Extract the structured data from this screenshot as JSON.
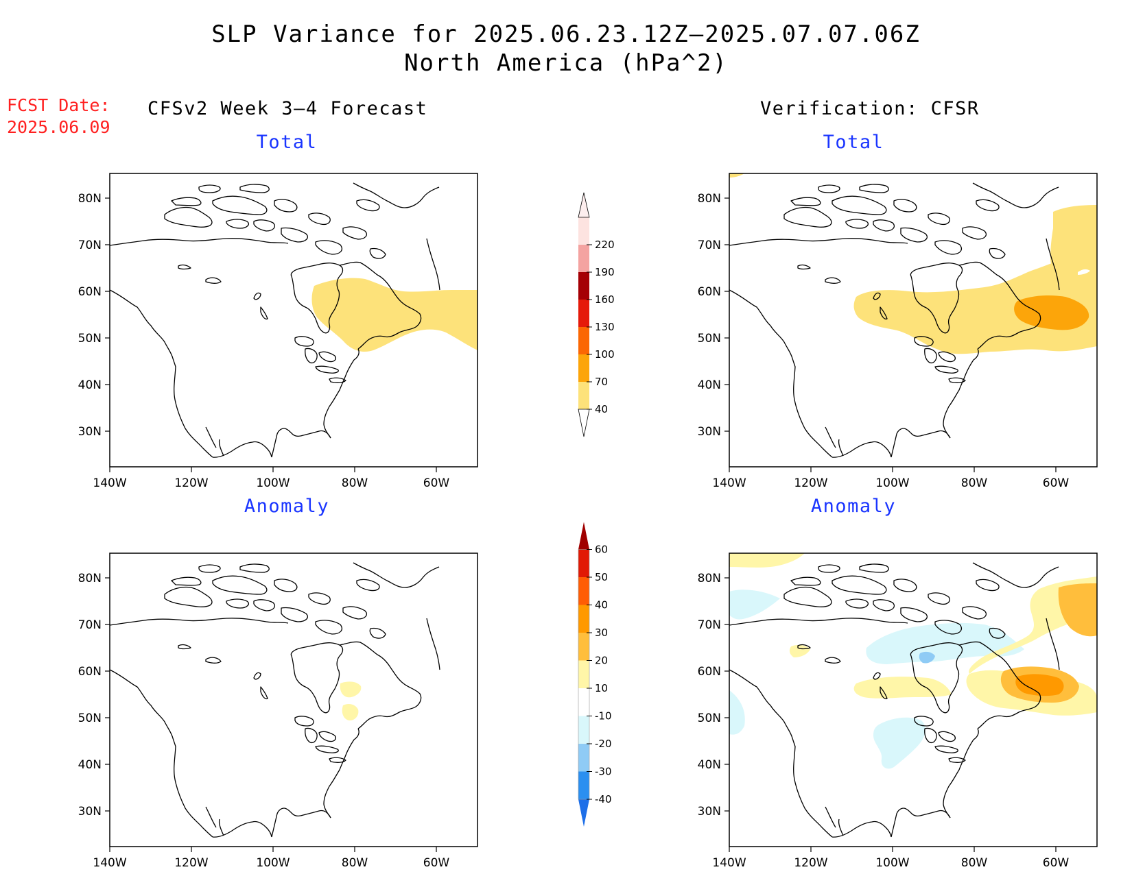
{
  "title": {
    "line1": "SLP Variance for 2025.06.23.12Z–2025.07.07.06Z",
    "line2": "North America (hPa^2)"
  },
  "fcst_date": {
    "label": "FCST Date:",
    "value": "2025.06.09"
  },
  "columns": {
    "left": "CFSv2 Week 3–4 Forecast",
    "right": "Verification: CFSR"
  },
  "panel_titles": {
    "total": "Total",
    "anomaly": "Anomaly"
  },
  "axes": {
    "lat_labels": [
      "80N",
      "70N",
      "60N",
      "50N",
      "40N",
      "30N"
    ],
    "lon_labels": [
      "140W",
      "120W",
      "100W",
      "80W",
      "60W"
    ]
  },
  "total_colorbar": {
    "levels": [
      "40",
      "70",
      "100",
      "130",
      "160",
      "190",
      "220"
    ],
    "colors": [
      "#fde27a",
      "#fca50a",
      "#fb6704",
      "#e51a0a",
      "#a50005",
      "#f4a3a1",
      "#fde3e0"
    ]
  },
  "anomaly_colorbar": {
    "levels": [
      "-40",
      "-30",
      "-20",
      "-10",
      "10",
      "20",
      "30",
      "40",
      "50",
      "60"
    ],
    "colors": [
      "#1e6fe8",
      "#2b8ff0",
      "#8fcbf5",
      "#d9f7fb",
      "#ffffff",
      "#fff6a8",
      "#ffbe3c",
      "#ff9900",
      "#ff5d05",
      "#e11a05",
      "#a00000"
    ]
  }
}
